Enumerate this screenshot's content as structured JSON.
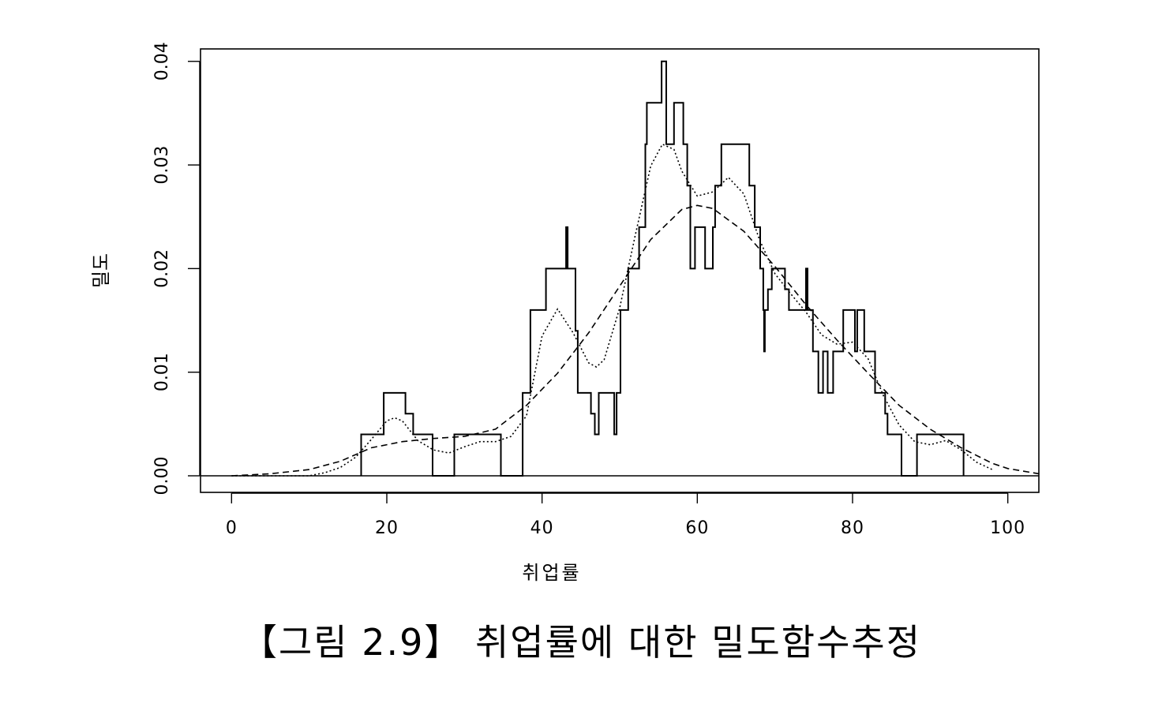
{
  "caption": "【그림 2.9】 취업률에 대한 밀도함수추정",
  "chart_data": {
    "type": "line",
    "xlabel": "취업률",
    "ylabel": "밀도",
    "xlim": [
      -4,
      104
    ],
    "ylim": [
      -0.0016,
      0.0412
    ],
    "xticks": [
      0,
      20,
      40,
      60,
      80,
      100
    ],
    "yticks": [
      0.0,
      0.01,
      0.02,
      0.03,
      0.04
    ],
    "xtick_labels": [
      "0",
      "20",
      "40",
      "60",
      "80",
      "100"
    ],
    "ytick_labels": [
      "0.00",
      "0.01",
      "0.02",
      "0.03",
      "0.04"
    ],
    "grid": false,
    "baseline": 0,
    "series": [
      {
        "style": "solid-step",
        "points": [
          [
            16.7,
            0
          ],
          [
            16.7,
            0.004
          ],
          [
            19.6,
            0.004
          ],
          [
            19.6,
            0.008
          ],
          [
            22.4,
            0.008
          ],
          [
            22.4,
            0.006
          ],
          [
            23.4,
            0.006
          ],
          [
            23.4,
            0.004
          ],
          [
            25.9,
            0.004
          ],
          [
            25.9,
            0
          ],
          [
            28.7,
            0
          ],
          [
            28.7,
            0.004
          ],
          [
            34.7,
            0.004
          ],
          [
            34.7,
            0
          ],
          [
            37.5,
            0
          ],
          [
            37.5,
            0.008
          ],
          [
            38.5,
            0.008
          ],
          [
            38.5,
            0.016
          ],
          [
            40.5,
            0.016
          ],
          [
            40.5,
            0.02
          ],
          [
            43.1,
            0.02
          ],
          [
            43.1,
            0.024
          ],
          [
            43.3,
            0.024
          ],
          [
            43.3,
            0.02
          ],
          [
            44.3,
            0.02
          ],
          [
            44.3,
            0.014
          ],
          [
            44.6,
            0.014
          ],
          [
            44.6,
            0.008
          ],
          [
            46.3,
            0.008
          ],
          [
            46.3,
            0.006
          ],
          [
            46.8,
            0.006
          ],
          [
            46.8,
            0.004
          ],
          [
            47.3,
            0.004
          ],
          [
            47.3,
            0.008
          ],
          [
            49.3,
            0.008
          ],
          [
            49.3,
            0.004
          ],
          [
            49.6,
            0.004
          ],
          [
            49.6,
            0.008
          ],
          [
            50.1,
            0.008
          ],
          [
            50.1,
            0.016
          ],
          [
            51.1,
            0.016
          ],
          [
            51.1,
            0.02
          ],
          [
            52.5,
            0.02
          ],
          [
            52.5,
            0.024
          ],
          [
            53.3,
            0.024
          ],
          [
            53.3,
            0.032
          ],
          [
            53.5,
            0.032
          ],
          [
            53.5,
            0.036
          ],
          [
            55.4,
            0.036
          ],
          [
            55.4,
            0.04
          ],
          [
            56.0,
            0.04
          ],
          [
            56.0,
            0.032
          ],
          [
            57.0,
            0.032
          ],
          [
            57.0,
            0.036
          ],
          [
            58.2,
            0.036
          ],
          [
            58.2,
            0.032
          ],
          [
            58.7,
            0.032
          ],
          [
            58.7,
            0.028
          ],
          [
            59.1,
            0.028
          ],
          [
            59.1,
            0.02
          ],
          [
            59.7,
            0.02
          ],
          [
            59.7,
            0.024
          ],
          [
            61.0,
            0.024
          ],
          [
            61.0,
            0.02
          ],
          [
            62.0,
            0.02
          ],
          [
            62.0,
            0.024
          ],
          [
            62.3,
            0.024
          ],
          [
            62.3,
            0.028
          ],
          [
            63.1,
            0.028
          ],
          [
            63.1,
            0.032
          ],
          [
            66.7,
            0.032
          ],
          [
            66.7,
            0.028
          ],
          [
            67.4,
            0.028
          ],
          [
            67.4,
            0.024
          ],
          [
            68.1,
            0.024
          ],
          [
            68.1,
            0.02
          ],
          [
            68.5,
            0.02
          ],
          [
            68.5,
            0.016
          ],
          [
            68.6,
            0.016
          ],
          [
            68.6,
            0.012
          ],
          [
            68.7,
            0.012
          ],
          [
            68.7,
            0.016
          ],
          [
            69.1,
            0.016
          ],
          [
            69.1,
            0.018
          ],
          [
            69.6,
            0.018
          ],
          [
            69.6,
            0.02
          ],
          [
            71.3,
            0.02
          ],
          [
            71.3,
            0.018
          ],
          [
            71.8,
            0.018
          ],
          [
            71.8,
            0.016
          ],
          [
            74.0,
            0.016
          ],
          [
            74.0,
            0.02
          ],
          [
            74.2,
            0.02
          ],
          [
            74.2,
            0.016
          ],
          [
            74.9,
            0.016
          ],
          [
            74.9,
            0.012
          ],
          [
            75.6,
            0.012
          ],
          [
            75.6,
            0.008
          ],
          [
            76.2,
            0.008
          ],
          [
            76.2,
            0.012
          ],
          [
            76.8,
            0.012
          ],
          [
            76.8,
            0.008
          ],
          [
            77.5,
            0.008
          ],
          [
            77.5,
            0.012
          ],
          [
            78.8,
            0.012
          ],
          [
            78.8,
            0.016
          ],
          [
            80.3,
            0.016
          ],
          [
            80.3,
            0.012
          ],
          [
            80.6,
            0.012
          ],
          [
            80.6,
            0.016
          ],
          [
            81.5,
            0.016
          ],
          [
            81.5,
            0.012
          ],
          [
            82.9,
            0.012
          ],
          [
            82.9,
            0.008
          ],
          [
            84.2,
            0.008
          ],
          [
            84.2,
            0.006
          ],
          [
            84.5,
            0.006
          ],
          [
            84.5,
            0.004
          ],
          [
            86.3,
            0.004
          ],
          [
            86.3,
            0
          ],
          [
            88.3,
            0
          ],
          [
            88.3,
            0.004
          ],
          [
            94.3,
            0.004
          ],
          [
            94.3,
            0
          ]
        ]
      },
      {
        "style": "dotted",
        "x": [
          0,
          5,
          10,
          12,
          14,
          16,
          18,
          20,
          21,
          22,
          24,
          26,
          28,
          30,
          32,
          34,
          36,
          38,
          40,
          42,
          44,
          46,
          47,
          48,
          50,
          52,
          54,
          55.5,
          57,
          58,
          60,
          62,
          64,
          66,
          68,
          70,
          72,
          74,
          76,
          78,
          80,
          82,
          84,
          86,
          88,
          90,
          92,
          94,
          96,
          98
        ],
        "y": [
          0,
          0,
          0,
          0.0003,
          0.0008,
          0.0018,
          0.0035,
          0.0053,
          0.0056,
          0.0053,
          0.0034,
          0.0025,
          0.0022,
          0.0028,
          0.0033,
          0.0033,
          0.0038,
          0.0058,
          0.0135,
          0.0161,
          0.0138,
          0.0109,
          0.0105,
          0.0112,
          0.0162,
          0.0232,
          0.0299,
          0.032,
          0.0315,
          0.0294,
          0.027,
          0.0274,
          0.0288,
          0.0272,
          0.0228,
          0.0195,
          0.0176,
          0.0158,
          0.0136,
          0.0127,
          0.0129,
          0.0113,
          0.0077,
          0.0049,
          0.0033,
          0.003,
          0.0034,
          0.0025,
          0.0013,
          0.0006
        ]
      },
      {
        "style": "dashed",
        "x": [
          0,
          5,
          10,
          14,
          18,
          22,
          26,
          30,
          34,
          38,
          42,
          46,
          50,
          54,
          58,
          60,
          62,
          66,
          70,
          74,
          78,
          82,
          86,
          90,
          94,
          98,
          100,
          104
        ],
        "y": [
          0,
          0.0002,
          0.0006,
          0.0014,
          0.0027,
          0.0033,
          0.0036,
          0.0038,
          0.0045,
          0.0068,
          0.0099,
          0.0138,
          0.0183,
          0.0228,
          0.0257,
          0.0261,
          0.0258,
          0.0236,
          0.0202,
          0.0165,
          0.0131,
          0.0099,
          0.0068,
          0.0045,
          0.0027,
          0.0012,
          0.0007,
          0.0002
        ]
      }
    ]
  }
}
